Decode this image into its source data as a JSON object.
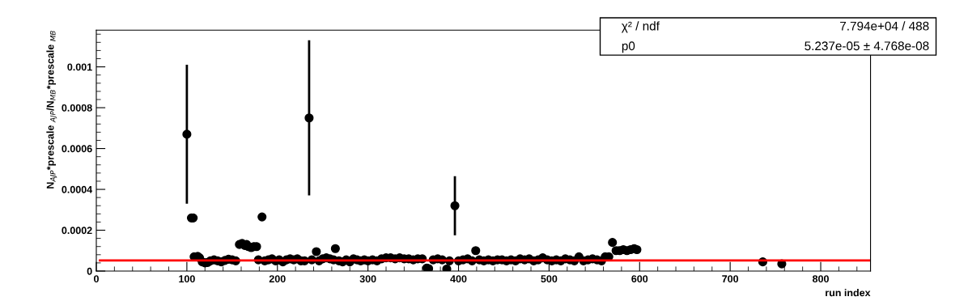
{
  "chart_data": {
    "type": "scatter",
    "xlabel": "run index",
    "ylabel": "N$_{AJP}$*prescale $_{AJP}$/N$_{MB}$*prescale $_{MB}$",
    "annotations": [
      "χ² / ndf",
      "7.794e+04 / 488",
      "p0",
      "5.237e-05 ± 4.768e-08"
    ],
    "xlim": [
      0,
      855
    ],
    "xticks": [
      0,
      100,
      200,
      300,
      400,
      500,
      600,
      700,
      800
    ],
    "ylim": [
      0,
      0.00118
    ],
    "yticks": [
      0,
      0.0002,
      0.0004,
      0.0006,
      0.0008,
      0.001
    ],
    "grid": false,
    "marker": "circle",
    "series": [
      {
        "color": "#000000",
        "x": [
          100,
          105,
          107,
          108,
          112,
          114,
          117,
          120,
          123,
          126,
          130,
          134,
          138,
          142,
          146,
          150,
          154,
          158,
          161,
          164,
          166,
          168,
          171,
          174,
          177,
          179,
          183,
          186,
          190,
          194,
          198,
          202,
          206,
          210,
          214,
          218,
          222,
          226,
          230,
          235,
          238,
          243,
          246,
          250,
          254,
          258,
          262,
          264,
          268,
          272,
          276,
          280,
          284,
          288,
          292,
          296,
          300,
          305,
          310,
          315,
          320,
          325,
          330,
          335,
          340,
          345,
          350,
          355,
          360,
          365,
          367,
          372,
          377,
          382,
          387,
          390,
          396,
          400,
          405,
          410,
          415,
          419,
          423,
          428,
          433,
          438,
          443,
          448,
          453,
          458,
          463,
          468,
          473,
          478,
          483,
          488,
          493,
          498,
          503,
          508,
          513,
          518,
          523,
          528,
          533,
          538,
          543,
          548,
          553,
          558,
          562,
          566,
          570,
          574,
          578,
          582,
          586,
          590,
          594,
          597,
          736,
          757
        ],
        "values": [
          0.00067,
          0.00026,
          0.00026,
          7e-05,
          7.2e-05,
          6.5e-05,
          4.5e-05,
          4e-05,
          4.2e-05,
          5e-05,
          5.5e-05,
          5e-05,
          4.5e-05,
          5.2e-05,
          5.8e-05,
          5.5e-05,
          5e-05,
          0.00013,
          0.000135,
          0.000125,
          0.00013,
          0.00012,
          0.000115,
          0.00012,
          0.00012,
          5.5e-05,
          0.000265,
          5e-05,
          5.5e-05,
          6e-05,
          5e-05,
          5.5e-05,
          4.5e-05,
          5.5e-05,
          6e-05,
          5.5e-05,
          6e-05,
          5e-05,
          5e-05,
          0.00075,
          5.5e-05,
          9.5e-05,
          5e-05,
          6e-05,
          6.5e-05,
          6e-05,
          5.5e-05,
          0.00011,
          5e-05,
          4.5e-05,
          5.5e-05,
          4.5e-05,
          6e-05,
          5.5e-05,
          5e-05,
          5.5e-05,
          5e-05,
          5.5e-05,
          5e-05,
          6e-05,
          6.5e-05,
          6.5e-05,
          6e-05,
          6.5e-05,
          6e-05,
          6e-05,
          5.5e-05,
          6e-05,
          6e-05,
          1.5e-05,
          1.2e-05,
          5.5e-05,
          6e-05,
          5.5e-05,
          1e-05,
          5e-05,
          0.00032,
          5e-05,
          5.5e-05,
          6e-05,
          5e-05,
          0.0001,
          5.5e-05,
          5e-05,
          5.5e-05,
          5e-05,
          5.5e-05,
          5.5e-05,
          5e-05,
          5.5e-05,
          5e-05,
          6e-05,
          5.5e-05,
          6e-05,
          5e-05,
          5.5e-05,
          6.5e-05,
          5.5e-05,
          5e-05,
          5.5e-05,
          5e-05,
          6e-05,
          5.5e-05,
          5e-05,
          7e-05,
          5e-05,
          5.5e-05,
          6e-05,
          5.5e-05,
          5e-05,
          7e-05,
          7e-05,
          0.00014,
          0.0001,
          0.0001,
          0.000105,
          0.0001,
          0.000105,
          0.00011,
          0.000105,
          4.5e-05,
          3.5e-05
        ],
        "errors": [
          0.00034,
          null,
          null,
          null,
          null,
          null,
          null,
          null,
          null,
          null,
          null,
          null,
          null,
          null,
          null,
          null,
          null,
          null,
          null,
          null,
          null,
          null,
          null,
          null,
          null,
          null,
          null,
          null,
          null,
          null,
          null,
          null,
          null,
          null,
          null,
          null,
          null,
          null,
          null,
          0.00038,
          null,
          null,
          null,
          null,
          null,
          null,
          null,
          null,
          null,
          null,
          null,
          null,
          null,
          null,
          null,
          null,
          null,
          null,
          null,
          null,
          null,
          null,
          null,
          null,
          null,
          null,
          null,
          null,
          null,
          null,
          null,
          null,
          null,
          null,
          null,
          null,
          0.000145,
          null,
          null,
          null,
          null,
          null,
          null,
          null,
          null,
          null,
          null,
          null,
          null,
          null,
          null,
          null,
          null,
          null,
          null,
          null,
          null,
          null,
          null,
          null,
          null,
          null,
          null,
          null,
          null,
          null,
          null,
          null,
          null,
          null,
          null,
          null,
          null,
          null,
          null,
          null,
          null,
          null,
          null,
          null,
          null,
          null
        ]
      },
      {
        "type": "line",
        "marker": "none",
        "color": "#ff0000",
        "x": [
          4,
          855
        ],
        "values": [
          5.237e-05,
          5.237e-05
        ]
      }
    ]
  }
}
